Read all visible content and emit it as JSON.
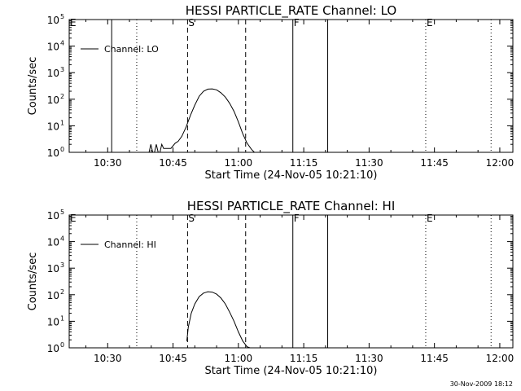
{
  "footer_timestamp": "30-Nov-2009 18:12",
  "chart_data": [
    {
      "type": "line",
      "title": "HESSI PARTICLE_RATE Channel: LO",
      "xlabel": "Start Time (24-Nov-05 10:21:10)",
      "ylabel": "Counts/sec",
      "y_scale": "log",
      "x_units": "time",
      "xlim": [
        "10:21:10",
        "12:03:00"
      ],
      "ylim": [
        1,
        100000
      ],
      "x_ticks": [
        "10:30",
        "10:45",
        "11:00",
        "11:15",
        "11:30",
        "11:45",
        "12:00"
      ],
      "y_ticks": [
        {
          "value": 1,
          "label": "10",
          "exp": "0"
        },
        {
          "value": 10,
          "label": "10",
          "exp": "1"
        },
        {
          "value": 100,
          "label": "10",
          "exp": "2"
        },
        {
          "value": 1000,
          "label": "10",
          "exp": "3"
        },
        {
          "value": 10000,
          "label": "10",
          "exp": "4"
        },
        {
          "value": 100000,
          "label": "10",
          "exp": "5"
        }
      ],
      "legend": {
        "position": "top-left",
        "label": "Channel: LO"
      },
      "markers": [
        {
          "label": "E",
          "time": "10:21:10",
          "style": "none"
        },
        {
          "label": "",
          "time": "10:36:40",
          "style": "dotted"
        },
        {
          "label": "S",
          "time": "10:48:20",
          "style": "dashed"
        },
        {
          "label": "",
          "time": "11:01:40",
          "style": "dashed"
        },
        {
          "label": "F",
          "time": "11:12:30",
          "style": "solid"
        },
        {
          "label": "",
          "time": "11:20:30",
          "style": "solid"
        },
        {
          "label": "E",
          "time": "11:43:00",
          "style": "dotted"
        },
        {
          "label": "",
          "time": "11:58:00",
          "style": "dotted"
        }
      ],
      "series": [
        {
          "name": "Channel: LO",
          "segments": [
            {
              "time": [
                "10:30:55",
                "10:30:55"
              ],
              "values": [
                1,
                100000
              ]
            },
            {
              "time": [
                "10:39:30",
                "10:39:55",
                "10:40:20",
                "10:40:45",
                "10:41:10",
                "10:41:35",
                "10:42:00",
                "10:42:25",
                "10:42:50",
                "10:43:30",
                "10:44:30",
                "10:45:30",
                "10:46:10",
                "10:47:00",
                "10:48:00",
                "10:49:00",
                "10:50:00",
                "10:51:00",
                "10:52:00",
                "10:53:00",
                "10:54:00",
                "10:55:00",
                "10:56:00",
                "10:57:00",
                "10:58:00",
                "10:59:00",
                "11:00:00",
                "11:01:00",
                "11:02:00",
                "11:03:00",
                "11:03:40"
              ],
              "values": [
                1,
                2,
                1,
                1,
                2,
                1,
                1,
                2,
                1.4,
                1.4,
                1.4,
                2.2,
                2.6,
                4,
                9,
                25,
                60,
                130,
                200,
                240,
                245,
                225,
                175,
                120,
                70,
                35,
                14,
                5,
                2.2,
                1.3,
                1
              ]
            }
          ]
        }
      ]
    },
    {
      "type": "line",
      "title": "HESSI PARTICLE_RATE Channel: HI",
      "xlabel": "Start Time (24-Nov-05 10:21:10)",
      "ylabel": "Counts/sec",
      "y_scale": "log",
      "x_units": "time",
      "xlim": [
        "10:21:10",
        "12:03:00"
      ],
      "ylim": [
        1,
        100000
      ],
      "x_ticks": [
        "10:30",
        "10:45",
        "11:00",
        "11:15",
        "11:30",
        "11:45",
        "12:00"
      ],
      "y_ticks": [
        {
          "value": 1,
          "label": "10",
          "exp": "0"
        },
        {
          "value": 10,
          "label": "10",
          "exp": "1"
        },
        {
          "value": 100,
          "label": "10",
          "exp": "2"
        },
        {
          "value": 1000,
          "label": "10",
          "exp": "3"
        },
        {
          "value": 10000,
          "label": "10",
          "exp": "4"
        },
        {
          "value": 100000,
          "label": "10",
          "exp": "5"
        }
      ],
      "legend": {
        "position": "top-left",
        "label": "Channel: HI"
      },
      "markers": [
        {
          "label": "E",
          "time": "10:21:10",
          "style": "none"
        },
        {
          "label": "",
          "time": "10:36:40",
          "style": "dotted"
        },
        {
          "label": "S",
          "time": "10:48:20",
          "style": "dashed"
        },
        {
          "label": "",
          "time": "11:01:40",
          "style": "dashed"
        },
        {
          "label": "F",
          "time": "11:12:30",
          "style": "solid"
        },
        {
          "label": "",
          "time": "11:20:30",
          "style": "solid"
        },
        {
          "label": "E",
          "time": "11:43:00",
          "style": "dotted"
        },
        {
          "label": "",
          "time": "11:58:00",
          "style": "dotted"
        }
      ],
      "series": [
        {
          "name": "Channel: HI",
          "segments": [
            {
              "time": [
                "10:48:10",
                "10:48:30",
                "10:49:10",
                "10:50:00",
                "10:51:00",
                "10:52:00",
                "10:53:00",
                "10:54:00",
                "10:55:00",
                "10:56:00",
                "10:57:00",
                "10:58:00",
                "10:59:00",
                "11:00:00",
                "11:01:00",
                "11:02:00",
                "11:02:40"
              ],
              "values": [
                1.8,
                6,
                20,
                45,
                85,
                115,
                130,
                125,
                105,
                75,
                45,
                22,
                10,
                4,
                1.8,
                1.1,
                1
              ]
            }
          ]
        }
      ]
    }
  ]
}
